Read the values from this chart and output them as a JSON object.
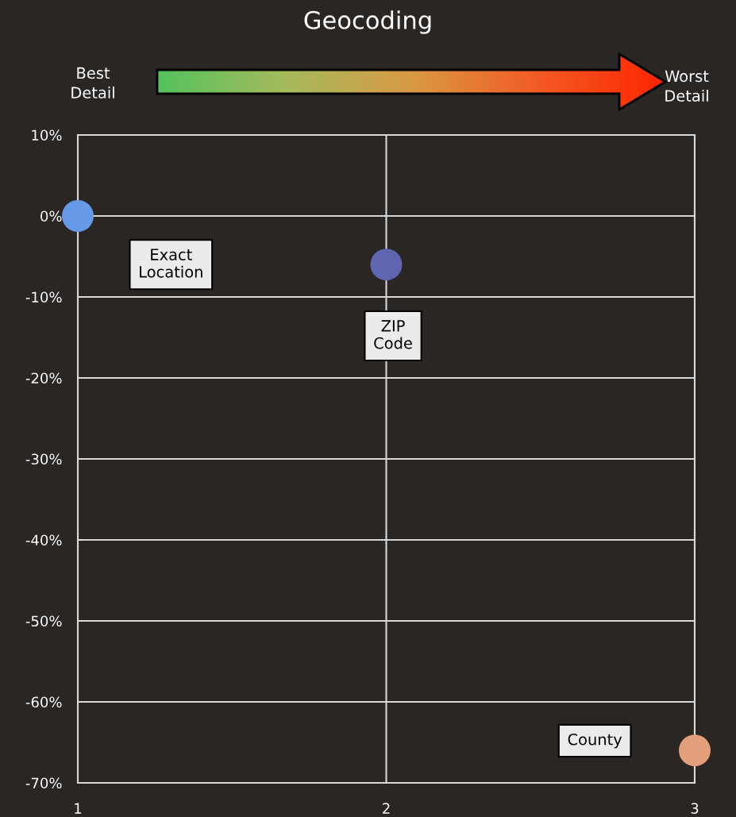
{
  "chart_data": {
    "type": "scatter",
    "title": "Geocoding",
    "x": [
      1,
      2,
      3
    ],
    "series": [
      {
        "values": [
          0,
          -6,
          -66
        ],
        "colors": [
          "#6699e8",
          "#5f65b0",
          "#e39e7a"
        ]
      }
    ],
    "xlim": [
      1,
      3
    ],
    "xticks": [
      1,
      2,
      3
    ],
    "ylim": [
      -70,
      10
    ],
    "yticks": [
      {
        "value": -70,
        "label": "-70%"
      },
      {
        "value": -60,
        "label": "-60%"
      },
      {
        "value": -50,
        "label": "-50%"
      },
      {
        "value": -40,
        "label": "-40%"
      },
      {
        "value": -30,
        "label": "-30%"
      },
      {
        "value": -20,
        "label": "-20%"
      },
      {
        "value": -10,
        "label": "-10%"
      },
      {
        "value": 0,
        "label": "0%"
      },
      {
        "value": 10,
        "label": "10%"
      }
    ],
    "grid": true,
    "marker": "circle",
    "legend": false,
    "annotations": [
      "Exact\nLocation",
      "ZIP\nCode",
      "County",
      "Best\nDetail",
      "Worst\nDetail"
    ]
  }
}
